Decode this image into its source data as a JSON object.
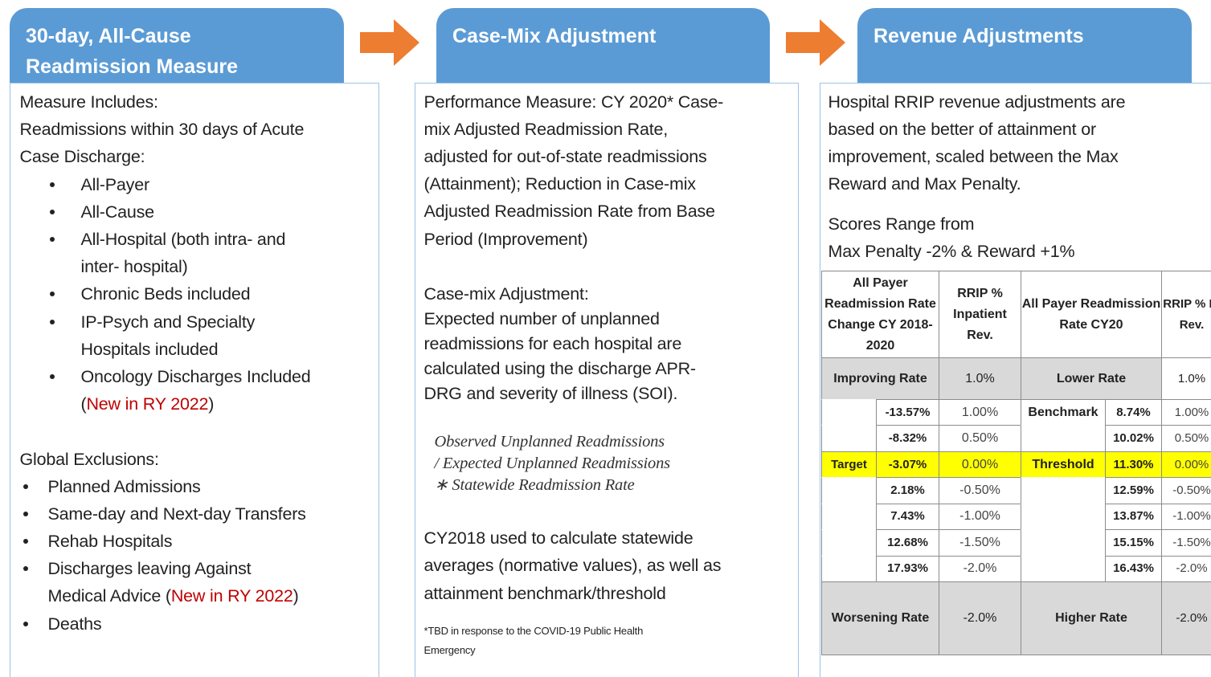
{
  "measure": {
    "header": [
      "30-day, All-Cause",
      "Readmission Measure"
    ],
    "intro": [
      "Measure Includes:",
      "Readmissions within 30 days of Acute",
      "Case Discharge:"
    ],
    "includes": [
      [
        "All-Payer"
      ],
      [
        "All-Cause"
      ],
      [
        "All-Hospital (both intra- and",
        "inter- hospital)"
      ],
      [
        "Chronic Beds included"
      ],
      [
        "IP-Psych and Specialty",
        "Hospitals included"
      ],
      [
        "Oncology Discharges Included",
        [
          "(",
          {
            "text": "New in RY 2022",
            "color": "#c00000"
          },
          ")"
        ]
      ]
    ],
    "exclusions_title": "Global Exclusions:",
    "exclusions": [
      [
        "Planned Admissions"
      ],
      [
        "Same-day and Next-day Transfers"
      ],
      [
        "Rehab Hospitals"
      ],
      [
        "Discharges leaving Against",
        [
          "Medical Advice (",
          {
            "text": "New in RY 2022",
            "color": "#c00000"
          },
          ")"
        ]
      ],
      [
        "Deaths"
      ]
    ]
  },
  "case_mix": {
    "header": [
      "Case-Mix Adjustment"
    ],
    "performance": [
      "Performance Measure: CY 2020* Case-",
      "mix Adjusted Readmission Rate,",
      "adjusted for out-of-state readmissions",
      "(Attainment); Reduction in Case-mix",
      "Adjusted Readmission Rate from Base",
      "Period (Improvement)"
    ],
    "adjustment": [
      "Case-mix Adjustment:",
      "Expected number of unplanned",
      "readmissions for each hospital are",
      "calculated using the discharge APR-",
      "DRG and severity of illness (SOI)."
    ],
    "formula": [
      "Observed Unplanned Readmissions",
      "/ Expected Unplanned Readmissions",
      "∗ Statewide Readmission Rate"
    ],
    "baseline": [
      "CY2018 used to calculate statewide",
      "averages (normative values), as well as",
      "attainment benchmark/threshold"
    ],
    "footnote": [
      "*TBD in response to the COVID-19 Public Health",
      "Emergency"
    ]
  },
  "revenue": {
    "header": [
      "Revenue Adjustments"
    ],
    "description": [
      "Hospital RRIP revenue adjustments are",
      "based on the better of attainment or",
      "improvement, scaled between the Max",
      "Reward and Max Penalty."
    ],
    "range": [
      "Scores Range from",
      "Max Penalty -2% & Reward +1%"
    ],
    "table": {
      "columns": [
        "All Payer Readmission Rate Change CY 2018-2020",
        "RRIP % Inpatient Rev.",
        "All Payer Readmission Rate CY20",
        "RRIP % IP Rev."
      ],
      "improving": [
        "Improving Rate",
        "1.0%",
        "Lower Rate",
        "1.0%"
      ],
      "rows": [
        [
          null,
          "-13.57%",
          "1.00%",
          "Benchmark",
          "8.74%",
          "1.00%"
        ],
        [
          null,
          "-8.32%",
          "0.50%",
          null,
          "10.02%",
          "0.50%"
        ],
        [
          "Target",
          "-3.07%",
          "0.00%",
          "Threshold",
          "11.30%",
          "0.00%"
        ],
        [
          null,
          "2.18%",
          "-0.50%",
          null,
          "12.59%",
          "-0.50%"
        ],
        [
          null,
          "7.43%",
          "-1.00%",
          null,
          "13.87%",
          "-1.00%"
        ],
        [
          null,
          "12.68%",
          "-1.50%",
          null,
          "15.15%",
          "-1.50%"
        ],
        [
          null,
          "17.93%",
          "-2.0%",
          null,
          "16.43%",
          "-2.0%"
        ]
      ],
      "highlight_row": 2,
      "highlight_color": "#ffff00",
      "worsening": [
        "Worsening Rate",
        "-2.0%",
        "Higher Rate",
        "-2.0%"
      ]
    }
  }
}
